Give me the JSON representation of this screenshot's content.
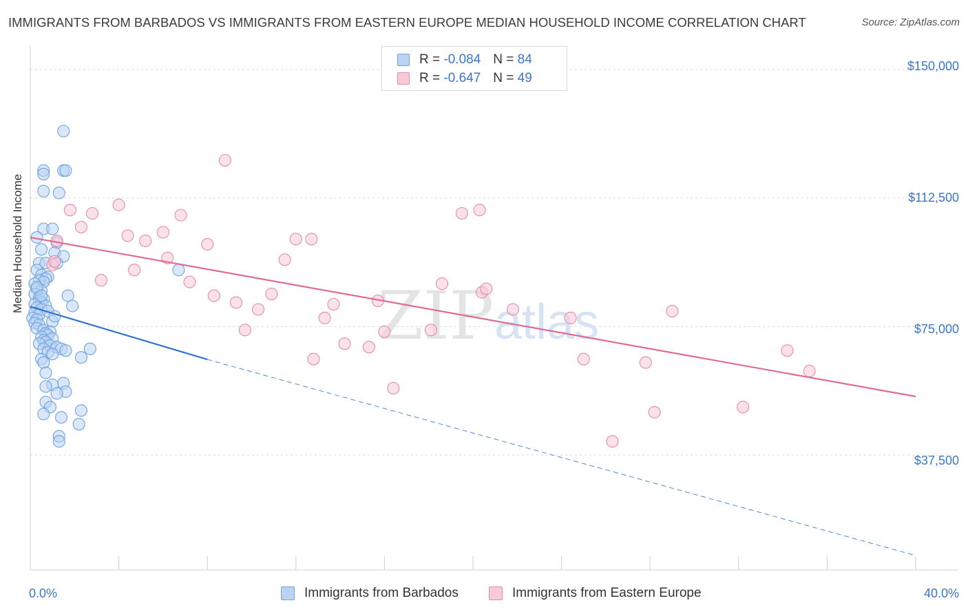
{
  "title": "IMMIGRANTS FROM BARBADOS VS IMMIGRANTS FROM EASTERN EUROPE MEDIAN HOUSEHOLD INCOME CORRELATION CHART",
  "source": "Source: ZipAtlas.com",
  "watermark": {
    "zip": "ZIP",
    "atlas": "atlas"
  },
  "legend": {
    "r_label": "R =",
    "n_label": "N =",
    "rows": [
      {
        "r": "-0.084",
        "n": "84",
        "color": "#6fa3e0",
        "fill": "#bad3f2"
      },
      {
        "r": "-0.647",
        "n": "49",
        "color": "#e88aa8",
        "fill": "#f8c9d7"
      }
    ]
  },
  "chart_data": {
    "type": "scatter",
    "title": "IMMIGRANTS FROM BARBADOS VS IMMIGRANTS FROM EASTERN EUROPE MEDIAN HOUSEHOLD INCOME CORRELATION CHART",
    "xlabel": "",
    "ylabel": "Median Household Income",
    "xlim": [
      0,
      40
    ],
    "ylim": [
      4000,
      157000
    ],
    "x_tick_labels": [
      "0.0%",
      "40.0%"
    ],
    "y_ticks": [
      {
        "value": 150000,
        "label": "$150,000"
      },
      {
        "value": 112500,
        "label": "$112,500"
      },
      {
        "value": 75000,
        "label": "$75,000"
      },
      {
        "value": 37500,
        "label": "$37,500"
      }
    ],
    "series": [
      {
        "name": "Immigrants from Barbados",
        "color": "#6fa3e0",
        "fill": "#bad3f2",
        "trend": {
          "solid": [
            [
              0,
              80800
            ],
            [
              8,
              65400
            ]
          ],
          "dashed": [
            [
              8,
              65400
            ],
            [
              40,
              8200
            ]
          ]
        },
        "points": [
          [
            1.5,
            132000
          ],
          [
            0.6,
            120500
          ],
          [
            1.5,
            120500
          ],
          [
            0.6,
            119500
          ],
          [
            1.6,
            120500
          ],
          [
            0.6,
            114500
          ],
          [
            1.3,
            114000
          ],
          [
            0.6,
            103500
          ],
          [
            1.0,
            103500
          ],
          [
            0.3,
            101000
          ],
          [
            1.2,
            99500
          ],
          [
            0.5,
            97500
          ],
          [
            1.1,
            96500
          ],
          [
            1.5,
            95500
          ],
          [
            0.4,
            93500
          ],
          [
            0.7,
            93500
          ],
          [
            1.2,
            93500
          ],
          [
            0.3,
            91500
          ],
          [
            0.5,
            90000
          ],
          [
            0.8,
            89500
          ],
          [
            0.7,
            89000
          ],
          [
            0.4,
            88500
          ],
          [
            0.6,
            88000
          ],
          [
            0.2,
            87500
          ],
          [
            0.3,
            86000
          ],
          [
            0.5,
            85500
          ],
          [
            0.2,
            84500
          ],
          [
            0.4,
            83500
          ],
          [
            0.6,
            83000
          ],
          [
            1.7,
            84000
          ],
          [
            0.4,
            82500
          ],
          [
            0.5,
            82000
          ],
          [
            0.2,
            81500
          ],
          [
            0.7,
            81000
          ],
          [
            1.9,
            81000
          ],
          [
            0.3,
            80500
          ],
          [
            0.5,
            80000
          ],
          [
            0.2,
            79000
          ],
          [
            0.4,
            78500
          ],
          [
            0.1,
            77500
          ],
          [
            0.3,
            77000
          ],
          [
            1.0,
            76500
          ],
          [
            0.2,
            76000
          ],
          [
            0.4,
            75500
          ],
          [
            0.3,
            74500
          ],
          [
            0.6,
            74000
          ],
          [
            0.9,
            73500
          ],
          [
            0.7,
            73000
          ],
          [
            0.8,
            72500
          ],
          [
            0.5,
            72000
          ],
          [
            1.0,
            71500
          ],
          [
            0.6,
            71000
          ],
          [
            0.7,
            70500
          ],
          [
            0.4,
            70000
          ],
          [
            0.9,
            69500
          ],
          [
            1.2,
            69000
          ],
          [
            0.6,
            68500
          ],
          [
            1.4,
            68500
          ],
          [
            1.6,
            68000
          ],
          [
            2.7,
            68500
          ],
          [
            0.8,
            67500
          ],
          [
            1.0,
            67000
          ],
          [
            2.3,
            66000
          ],
          [
            0.5,
            65500
          ],
          [
            0.6,
            64500
          ],
          [
            0.7,
            61500
          ],
          [
            1.5,
            58500
          ],
          [
            1.0,
            58000
          ],
          [
            0.7,
            57500
          ],
          [
            1.6,
            56000
          ],
          [
            1.2,
            55500
          ],
          [
            0.7,
            53000
          ],
          [
            0.9,
            51500
          ],
          [
            2.3,
            50500
          ],
          [
            0.6,
            49500
          ],
          [
            1.4,
            48500
          ],
          [
            2.2,
            46500
          ],
          [
            1.3,
            43000
          ],
          [
            1.3,
            41500
          ],
          [
            6.7,
            91500
          ],
          [
            0.3,
            86500
          ],
          [
            0.5,
            84000
          ],
          [
            0.8,
            79500
          ],
          [
            1.1,
            78000
          ]
        ]
      },
      {
        "name": "Immigrants from Eastern Europe",
        "color": "#e88aa8",
        "fill": "#f8c9d7",
        "trend": {
          "solid": [
            [
              0,
              101000
            ],
            [
              40,
              54600
            ]
          ]
        },
        "points": [
          [
            8.8,
            123500
          ],
          [
            4.0,
            110500
          ],
          [
            1.8,
            109000
          ],
          [
            2.8,
            108000
          ],
          [
            6.8,
            107500
          ],
          [
            2.3,
            104000
          ],
          [
            6.0,
            102500
          ],
          [
            4.4,
            101500
          ],
          [
            5.2,
            100000
          ],
          [
            12.0,
            100500
          ],
          [
            12.7,
            100500
          ],
          [
            1.2,
            100000
          ],
          [
            8.0,
            99000
          ],
          [
            6.2,
            95000
          ],
          [
            11.5,
            94500
          ],
          [
            1.0,
            93000
          ],
          [
            4.7,
            91500
          ],
          [
            3.2,
            88500
          ],
          [
            7.2,
            88000
          ],
          [
            18.6,
            87500
          ],
          [
            8.3,
            84000
          ],
          [
            10.9,
            84500
          ],
          [
            20.4,
            85000
          ],
          [
            9.3,
            82000
          ],
          [
            15.7,
            82500
          ],
          [
            13.7,
            81500
          ],
          [
            10.3,
            80000
          ],
          [
            21.8,
            80000
          ],
          [
            29.0,
            79500
          ],
          [
            24.4,
            77500
          ],
          [
            13.3,
            77500
          ],
          [
            9.7,
            74000
          ],
          [
            16.0,
            73500
          ],
          [
            18.1,
            74000
          ],
          [
            14.2,
            70000
          ],
          [
            15.3,
            69000
          ],
          [
            34.2,
            68000
          ],
          [
            12.8,
            65500
          ],
          [
            25.0,
            65500
          ],
          [
            27.8,
            64500
          ],
          [
            35.2,
            62000
          ],
          [
            16.4,
            57000
          ],
          [
            32.2,
            51500
          ],
          [
            28.2,
            50000
          ],
          [
            26.3,
            41500
          ],
          [
            20.6,
            86000
          ],
          [
            19.5,
            108000
          ],
          [
            20.3,
            109000
          ],
          [
            1.1,
            94000
          ]
        ]
      }
    ]
  }
}
